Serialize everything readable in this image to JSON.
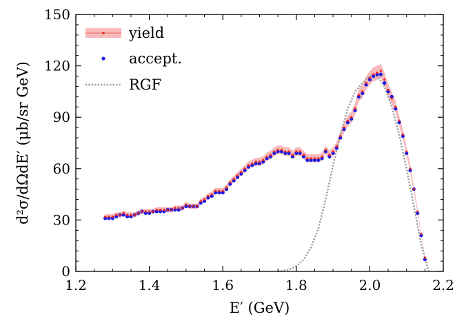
{
  "chart_data": {
    "type": "scatter",
    "xlabel": "E′ (GeV)",
    "ylabel": "d²σ/dΩdE′ (μb/sr GeV)",
    "xlim": [
      1.2,
      2.2
    ],
    "ylim": [
      0,
      150
    ],
    "xticks": [
      1.2,
      1.4,
      1.6,
      1.8,
      2.0,
      2.2
    ],
    "yticks": [
      0,
      30,
      60,
      90,
      120,
      150
    ],
    "xtick_labels": [
      "1.2",
      "1.4",
      "1.6",
      "1.8",
      "2.0",
      "2.2"
    ],
    "ytick_labels": [
      "0",
      "30",
      "60",
      "90",
      "120",
      "150"
    ],
    "grid": false,
    "legend_position": "top-left",
    "series": [
      {
        "name": "yield",
        "style": "points-with-band",
        "color": "#e8221f",
        "band_color": "#f4a3a3",
        "x": [
          1.28,
          1.29,
          1.3,
          1.31,
          1.32,
          1.33,
          1.34,
          1.35,
          1.36,
          1.37,
          1.38,
          1.39,
          1.4,
          1.41,
          1.42,
          1.43,
          1.44,
          1.45,
          1.46,
          1.47,
          1.48,
          1.49,
          1.5,
          1.51,
          1.52,
          1.53,
          1.54,
          1.55,
          1.56,
          1.57,
          1.58,
          1.59,
          1.6,
          1.61,
          1.62,
          1.63,
          1.64,
          1.65,
          1.66,
          1.67,
          1.68,
          1.69,
          1.7,
          1.71,
          1.72,
          1.73,
          1.74,
          1.75,
          1.76,
          1.77,
          1.78,
          1.79,
          1.8,
          1.81,
          1.82,
          1.83,
          1.84,
          1.85,
          1.86,
          1.87,
          1.88,
          1.89,
          1.9,
          1.91,
          1.92,
          1.93,
          1.94,
          1.95,
          1.96,
          1.97,
          1.98,
          1.99,
          2.0,
          2.01,
          2.02,
          2.03,
          2.04,
          2.05,
          2.06,
          2.07,
          2.08,
          2.09,
          2.1,
          2.11,
          2.12,
          2.13,
          2.14,
          2.15
        ],
        "y": [
          32,
          32,
          32,
          33,
          33,
          34,
          33,
          33,
          33,
          34,
          35,
          35,
          35,
          35,
          36,
          36,
          36,
          36,
          36,
          37,
          37,
          37,
          39,
          38,
          38,
          38,
          41,
          42,
          44,
          45,
          47,
          47,
          47,
          49,
          52,
          54,
          56,
          58,
          60,
          62,
          63,
          64,
          64,
          65,
          67,
          68,
          70,
          71,
          71,
          70,
          70,
          68,
          70,
          70,
          68,
          66,
          66,
          66,
          66,
          67,
          71,
          68,
          70,
          73,
          79,
          84,
          88,
          90,
          95,
          103,
          105,
          110,
          113,
          115,
          116,
          117,
          112,
          106,
          101,
          96,
          88,
          80,
          70,
          60,
          48,
          35,
          22,
          8
        ],
        "band_err": [
          1.5,
          1.5,
          1.5,
          1.5,
          1.5,
          1.5,
          1.5,
          1.5,
          1.5,
          1.5,
          1.5,
          1.5,
          1.5,
          1.5,
          1.5,
          1.5,
          1.5,
          1.5,
          1.5,
          1.5,
          1.5,
          1.5,
          1.5,
          1.5,
          1.5,
          1.5,
          1.6,
          1.6,
          1.6,
          1.7,
          1.7,
          1.7,
          1.7,
          1.8,
          1.8,
          1.9,
          2.0,
          2.0,
          2.1,
          2.2,
          2.2,
          2.3,
          2.3,
          2.3,
          2.4,
          2.4,
          2.5,
          2.5,
          2.5,
          2.5,
          2.5,
          2.4,
          2.5,
          2.5,
          2.4,
          2.4,
          2.4,
          2.4,
          2.4,
          2.4,
          2.5,
          2.4,
          2.5,
          2.6,
          2.8,
          3.0,
          3.1,
          3.2,
          3.4,
          3.7,
          3.8,
          3.9,
          4.0,
          4.1,
          4.1,
          4.1,
          4.0,
          3.8,
          3.6,
          3.4,
          3.1,
          2.8,
          2.5,
          2.1,
          1.7,
          1.3,
          0.9,
          0.5
        ]
      },
      {
        "name": "accept.",
        "style": "points",
        "color": "#1a1ae6",
        "x": [
          1.28,
          1.29,
          1.3,
          1.31,
          1.32,
          1.33,
          1.34,
          1.35,
          1.36,
          1.37,
          1.38,
          1.39,
          1.4,
          1.41,
          1.42,
          1.43,
          1.44,
          1.45,
          1.46,
          1.47,
          1.48,
          1.49,
          1.5,
          1.51,
          1.52,
          1.53,
          1.54,
          1.55,
          1.56,
          1.57,
          1.58,
          1.59,
          1.6,
          1.61,
          1.62,
          1.63,
          1.64,
          1.65,
          1.66,
          1.67,
          1.68,
          1.69,
          1.7,
          1.71,
          1.72,
          1.73,
          1.74,
          1.75,
          1.76,
          1.77,
          1.78,
          1.79,
          1.8,
          1.81,
          1.82,
          1.83,
          1.84,
          1.85,
          1.86,
          1.87,
          1.88,
          1.89,
          1.9,
          1.91,
          1.92,
          1.93,
          1.94,
          1.95,
          1.96,
          1.97,
          1.98,
          1.99,
          2.0,
          2.01,
          2.02,
          2.03,
          2.04,
          2.05,
          2.06,
          2.07,
          2.08,
          2.09,
          2.1,
          2.11,
          2.12,
          2.13,
          2.14,
          2.15
        ],
        "y": [
          31,
          31,
          31,
          32,
          33,
          33,
          32,
          32,
          33,
          34,
          35,
          34,
          34,
          35,
          35,
          35,
          35,
          36,
          36,
          36,
          36,
          37,
          38,
          38,
          38,
          38,
          40,
          41,
          43,
          44,
          46,
          46,
          46,
          48,
          51,
          53,
          55,
          57,
          59,
          61,
          62,
          63,
          63,
          64,
          66,
          67,
          69,
          70,
          70,
          69,
          69,
          67,
          69,
          69,
          67,
          65,
          65,
          65,
          65,
          66,
          70,
          67,
          69,
          72,
          78,
          83,
          87,
          89,
          94,
          102,
          104,
          109,
          112,
          114,
          115,
          115,
          110,
          105,
          102,
          95,
          87,
          79,
          69,
          59,
          48,
          34,
          21,
          7
        ]
      },
      {
        "name": "RGF",
        "style": "dotted-line",
        "color": "#999999",
        "x": [
          1.75,
          1.78,
          1.8,
          1.82,
          1.84,
          1.86,
          1.88,
          1.9,
          1.92,
          1.94,
          1.96,
          1.98,
          2.0,
          2.02,
          2.04,
          2.06,
          2.08,
          2.1,
          2.12,
          2.14,
          2.16
        ],
        "y": [
          0,
          1,
          3,
          7,
          14,
          25,
          42,
          62,
          80,
          95,
          105,
          110,
          114,
          114,
          108,
          96,
          80,
          60,
          38,
          16,
          0
        ]
      }
    ]
  }
}
